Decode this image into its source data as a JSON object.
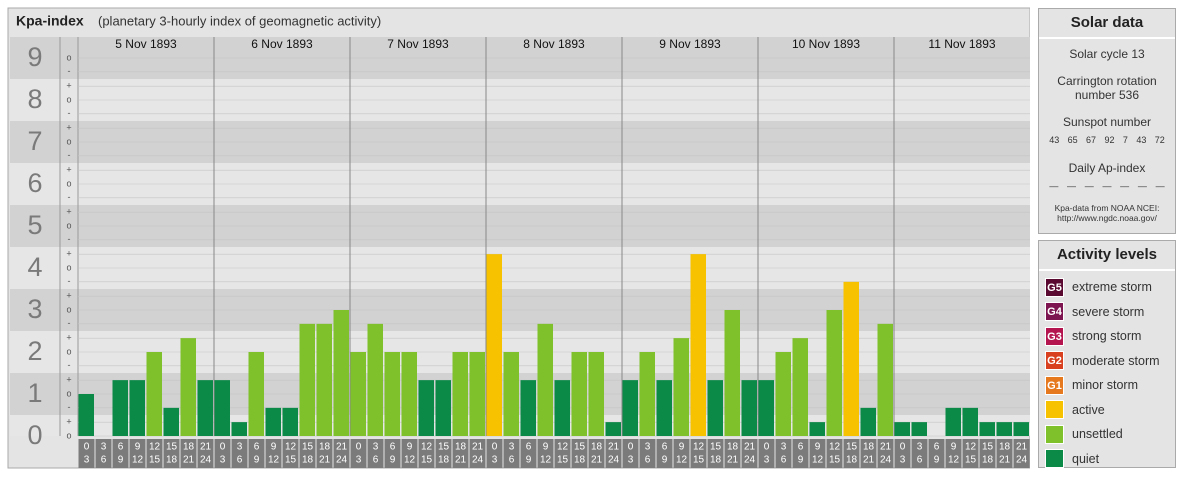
{
  "chart_data": {
    "type": "bar",
    "title": "Kpa-index",
    "subtitle": "(planetary 3-hourly index of geomagnetic activity)",
    "ylim": [
      0,
      9.5
    ],
    "yticks": [
      0,
      1,
      2,
      3,
      4,
      5,
      6,
      7,
      8,
      9
    ],
    "minor_ticks": [
      {
        "value": 0,
        "label": "o"
      },
      {
        "value": 0.33,
        "label": "+"
      },
      {
        "value": 0.67,
        "label": "-"
      },
      {
        "value": 1,
        "label": "o"
      },
      {
        "value": 1.33,
        "label": "+"
      },
      {
        "value": 1.67,
        "label": "-"
      },
      {
        "value": 2,
        "label": "o"
      },
      {
        "value": 2.33,
        "label": "+"
      },
      {
        "value": 2.67,
        "label": "-"
      },
      {
        "value": 3,
        "label": "o"
      },
      {
        "value": 3.33,
        "label": "+"
      },
      {
        "value": 3.67,
        "label": "-"
      },
      {
        "value": 4,
        "label": "o"
      },
      {
        "value": 4.33,
        "label": "+"
      },
      {
        "value": 4.67,
        "label": "-"
      },
      {
        "value": 5,
        "label": "o"
      },
      {
        "value": 5.33,
        "label": "+"
      },
      {
        "value": 5.67,
        "label": "-"
      },
      {
        "value": 6,
        "label": "o"
      },
      {
        "value": 6.33,
        "label": "+"
      },
      {
        "value": 6.67,
        "label": "-"
      },
      {
        "value": 7,
        "label": "o"
      },
      {
        "value": 7.33,
        "label": "+"
      },
      {
        "value": 7.67,
        "label": "-"
      },
      {
        "value": 8,
        "label": "o"
      },
      {
        "value": 8.33,
        "label": "+"
      },
      {
        "value": 8.67,
        "label": "-"
      },
      {
        "value": 9,
        "label": "o"
      }
    ],
    "hour_slots": [
      {
        "start": "0",
        "end": "3"
      },
      {
        "start": "3",
        "end": "6"
      },
      {
        "start": "6",
        "end": "9"
      },
      {
        "start": "9",
        "end": "12"
      },
      {
        "start": "12",
        "end": "15"
      },
      {
        "start": "15",
        "end": "18"
      },
      {
        "start": "18",
        "end": "21"
      },
      {
        "start": "21",
        "end": "24"
      }
    ],
    "days": [
      {
        "date": "5 Nov 1893",
        "values": [
          1,
          0,
          1.33,
          1.33,
          2,
          0.67,
          2.33,
          1.33
        ],
        "colors": [
          "#0b8a47",
          "#0b8a47",
          "#0b8a47",
          "#0b8a47",
          "#7fc12a",
          "#0b8a47",
          "#7fc12a",
          "#0b8a47"
        ]
      },
      {
        "date": "6 Nov 1893",
        "values": [
          1.33,
          0.33,
          2,
          0.67,
          0.67,
          2.67,
          2.67,
          3
        ],
        "colors": [
          "#0b8a47",
          "#0b8a47",
          "#7fc12a",
          "#0b8a47",
          "#0b8a47",
          "#7fc12a",
          "#7fc12a",
          "#7fc12a"
        ]
      },
      {
        "date": "7 Nov 1893",
        "values": [
          2,
          2.67,
          2,
          2,
          1.33,
          1.33,
          2,
          2
        ],
        "colors": [
          "#7fc12a",
          "#7fc12a",
          "#7fc12a",
          "#7fc12a",
          "#0b8a47",
          "#0b8a47",
          "#7fc12a",
          "#7fc12a"
        ]
      },
      {
        "date": "8 Nov 1893",
        "values": [
          4.33,
          2,
          1.33,
          2.67,
          1.33,
          2,
          2,
          0.33
        ],
        "colors": [
          "#f7c200",
          "#7fc12a",
          "#0b8a47",
          "#7fc12a",
          "#0b8a47",
          "#7fc12a",
          "#7fc12a",
          "#0b8a47"
        ]
      },
      {
        "date": "9 Nov 1893",
        "values": [
          1.33,
          2,
          1.33,
          2.33,
          4.33,
          1.33,
          3,
          1.33
        ],
        "colors": [
          "#0b8a47",
          "#7fc12a",
          "#0b8a47",
          "#7fc12a",
          "#f7c200",
          "#0b8a47",
          "#7fc12a",
          "#0b8a47"
        ]
      },
      {
        "date": "10 Nov 1893",
        "values": [
          1.33,
          2,
          2.33,
          0.33,
          3,
          3.67,
          0.67,
          2.67
        ],
        "colors": [
          "#0b8a47",
          "#7fc12a",
          "#7fc12a",
          "#0b8a47",
          "#7fc12a",
          "#f7c200",
          "#0b8a47",
          "#7fc12a"
        ]
      },
      {
        "date": "11 Nov 1893",
        "values": [
          0.33,
          0.33,
          0,
          0.67,
          0.67,
          0.33,
          0.33,
          0.33
        ],
        "colors": [
          "#0b8a47",
          "#0b8a47",
          "#0b8a47",
          "#0b8a47",
          "#0b8a47",
          "#0b8a47",
          "#0b8a47",
          "#0b8a47"
        ]
      }
    ]
  },
  "solar_data": {
    "title": "Solar data",
    "cycle": "Solar cycle 13",
    "carrington": "Carrington rotation number 536",
    "sunspot_title": "Sunspot number",
    "sunspot_numbers": [
      43,
      65,
      67,
      92,
      7,
      43,
      72
    ],
    "ap_title": "Daily Ap-index",
    "ap_values": [
      "—",
      "—",
      "—",
      "—",
      "—",
      "—",
      "—"
    ],
    "source": "Kpa-data from NOAA NCEI:",
    "source_url": "http://www.ngdc.noaa.gov/"
  },
  "activity_levels": {
    "title": "Activity levels",
    "items": [
      {
        "code": "G5",
        "name": "extreme storm",
        "color": "#5a0a30"
      },
      {
        "code": "G4",
        "name": "severe storm",
        "color": "#7d1650"
      },
      {
        "code": "G3",
        "name": "strong storm",
        "color": "#b5154e"
      },
      {
        "code": "G2",
        "name": "moderate storm",
        "color": "#d8401f"
      },
      {
        "code": "G1",
        "name": "minor storm",
        "color": "#e6781e"
      },
      {
        "name": "active",
        "color": "#f7c200"
      },
      {
        "name": "unsettled",
        "color": "#7fc12a"
      },
      {
        "name": "quiet",
        "color": "#0b8a47"
      }
    ]
  }
}
